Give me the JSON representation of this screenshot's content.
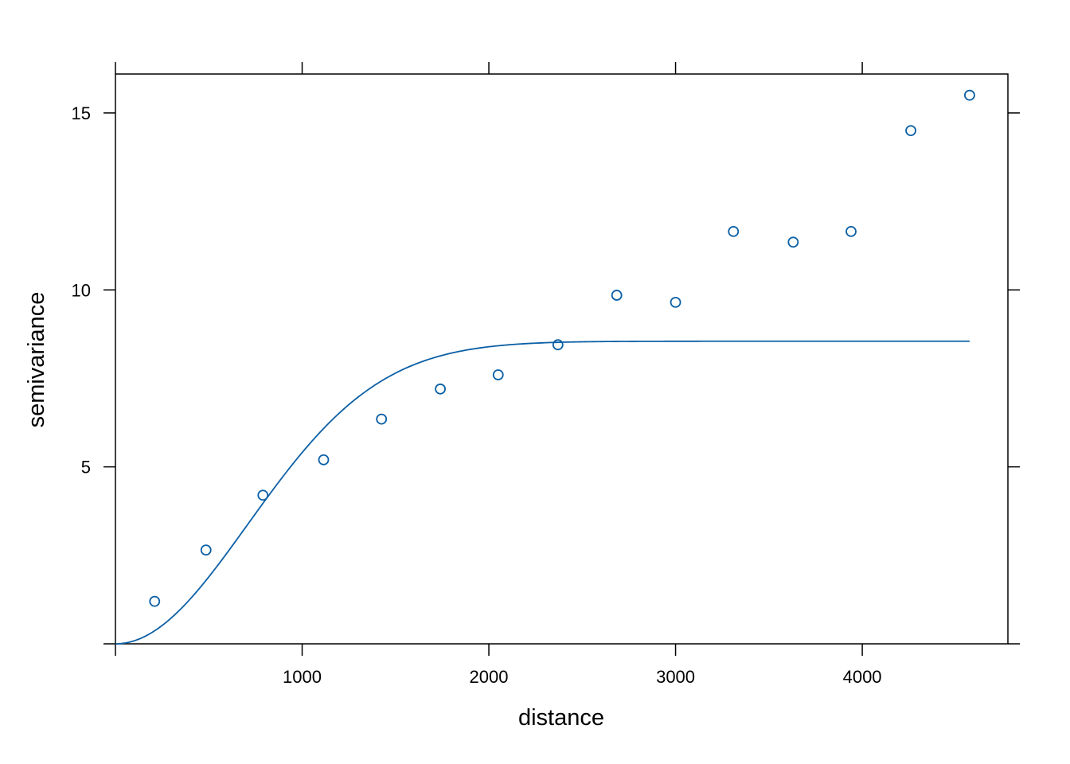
{
  "chart_data": {
    "type": "scatter",
    "title": "",
    "xlabel": "distance",
    "ylabel": "semivariance",
    "xlim": [
      0,
      4780
    ],
    "ylim": [
      0,
      16.1
    ],
    "x_ticks": [
      1000,
      2000,
      3000,
      4000
    ],
    "y_ticks": [
      5,
      10,
      15
    ],
    "grid": false,
    "legend": "none",
    "colors": {
      "series": "#0b5fa5",
      "axis": "#000000"
    },
    "points": [
      {
        "x": 210,
        "y": 1.2
      },
      {
        "x": 485,
        "y": 2.65
      },
      {
        "x": 790,
        "y": 4.2
      },
      {
        "x": 1115,
        "y": 5.2
      },
      {
        "x": 1425,
        "y": 6.35
      },
      {
        "x": 1740,
        "y": 7.2
      },
      {
        "x": 2050,
        "y": 7.6
      },
      {
        "x": 2370,
        "y": 8.45
      },
      {
        "x": 2685,
        "y": 9.85
      },
      {
        "x": 3000,
        "y": 9.65
      },
      {
        "x": 3310,
        "y": 11.65
      },
      {
        "x": 3630,
        "y": 11.35
      },
      {
        "x": 3940,
        "y": 11.65
      },
      {
        "x": 4260,
        "y": 14.5
      },
      {
        "x": 4575,
        "y": 15.5
      }
    ],
    "fitted_model": {
      "type": "gaussian",
      "nugget": 0,
      "sill": 8.55,
      "range": 1000,
      "x_min": 0,
      "x_max": 4575
    }
  }
}
